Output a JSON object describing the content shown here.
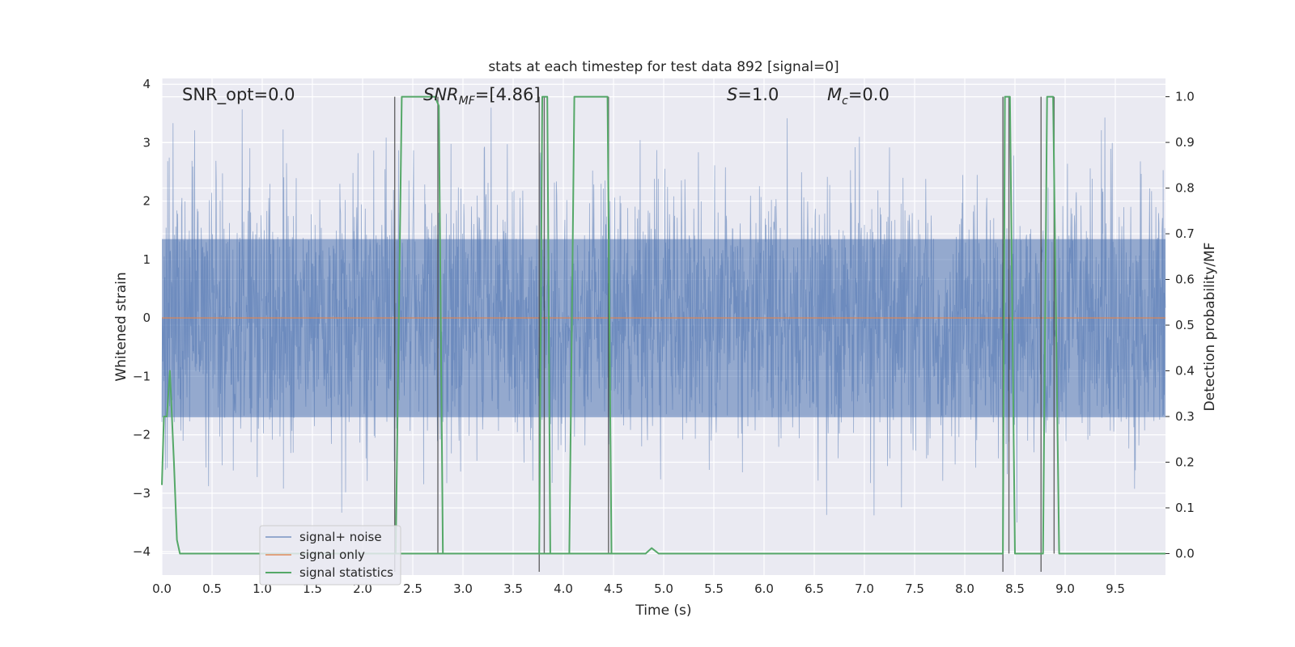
{
  "chart_data": {
    "type": "line",
    "title": "stats at each timestep for test data 892 [signal=0]",
    "xlabel": "Time (s)",
    "ylabel": "Whitened strain",
    "ylabel_right": "Detection probability/MF",
    "xlim": [
      0.0,
      10.0
    ],
    "ylim": [
      -4.4,
      4.1
    ],
    "ylim_right": [
      -0.047,
      1.04
    ],
    "x_ticks": [
      "0.0",
      "0.5",
      "1.0",
      "1.5",
      "2.0",
      "2.5",
      "3.0",
      "3.5",
      "4.0",
      "4.5",
      "5.0",
      "5.5",
      "6.0",
      "6.5",
      "7.0",
      "7.5",
      "8.0",
      "8.5",
      "9.0",
      "9.5"
    ],
    "y_ticks": [
      "−4",
      "−3",
      "−2",
      "−1",
      "0",
      "1",
      "2",
      "3",
      "4"
    ],
    "y_ticks_right": [
      "0.0",
      "0.1",
      "0.2",
      "0.3",
      "0.4",
      "0.5",
      "0.6",
      "0.7",
      "0.8",
      "0.9",
      "1.0"
    ],
    "grid": true,
    "legend_position": "lower-left",
    "annotations": {
      "snr_opt": "SNR_opt=0.0",
      "snr_mf_base": "SNR",
      "snr_mf_sub": "MF",
      "snr_mf_value": "=[4.86]",
      "s_base": "S",
      "s_value": "=1.0",
      "mc_base": "M",
      "mc_sub": "c",
      "mc_value": "=0.0"
    },
    "series": [
      {
        "name": "signal+ noise",
        "color": "#4c72b0",
        "kind": "noise",
        "approx_range": [
          -3.5,
          3.6
        ]
      },
      {
        "name": "signal only",
        "color": "#dd8452",
        "kind": "flat",
        "value": 0.0
      },
      {
        "name": "signal statistics",
        "color": "#55a868",
        "kind": "probability",
        "x": [
          0.0,
          0.02,
          0.05,
          0.08,
          0.1,
          0.12,
          0.15,
          0.18,
          4.77,
          4.82,
          4.88,
          4.95,
          5.0,
          8.38,
          8.4,
          8.45,
          8.5,
          8.7,
          8.78,
          8.82,
          8.88,
          8.94,
          9.0,
          10.0
        ],
        "y": [
          0.15,
          0.3,
          0.3,
          0.4,
          0.3,
          0.2,
          0.03,
          0.0,
          0.0,
          0.0,
          0.012,
          0.0,
          0.0,
          0.0,
          1.0,
          1.0,
          0.0,
          0.0,
          0.0,
          1.0,
          1.0,
          0.0,
          0.0,
          0.0
        ]
      },
      {
        "name": "",
        "color": "#55a868",
        "kind": "probability-segment",
        "x": [
          2.33,
          2.39,
          2.72,
          2.76,
          2.8,
          2.86
        ],
        "y": [
          0.0,
          1.0,
          1.0,
          0.98,
          0.0,
          0.0
        ]
      },
      {
        "name": "",
        "color": "#55a868",
        "kind": "probability-segment",
        "x": [
          3.76,
          3.79,
          3.84,
          3.87,
          4.06,
          4.11,
          4.44,
          4.48,
          4.55
        ],
        "y": [
          0.0,
          1.0,
          1.0,
          0.0,
          0.0,
          1.0,
          1.0,
          0.0,
          0.0
        ]
      }
    ],
    "vertical_markers": [
      {
        "x": 2.32,
        "top": 1.0,
        "bottom": -0.04
      },
      {
        "x": 2.75,
        "top": 1.0,
        "bottom": 0.0
      },
      {
        "x": 3.76,
        "top": 1.0,
        "bottom": -0.04
      },
      {
        "x": 3.81,
        "top": 1.0,
        "bottom": 0.0
      },
      {
        "x": 4.45,
        "top": 1.0,
        "bottom": 0.0
      },
      {
        "x": 8.38,
        "top": 1.0,
        "bottom": -0.04
      },
      {
        "x": 8.44,
        "top": 1.0,
        "bottom": 0.0
      },
      {
        "x": 8.76,
        "top": 1.0,
        "bottom": -0.04
      },
      {
        "x": 8.89,
        "top": 1.0,
        "bottom": 0.0
      }
    ],
    "legend": [
      "signal+ noise",
      "signal only",
      "signal statistics"
    ]
  }
}
